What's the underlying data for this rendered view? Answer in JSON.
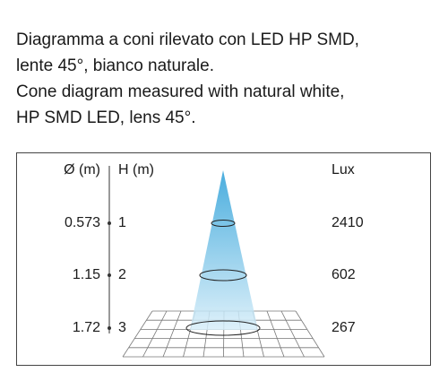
{
  "description": {
    "lines": [
      "Diagramma a coni rilevato con LED HP SMD,",
      "lente 45°, bianco naturale.",
      "Cone diagram measured with natural white,",
      "HP SMD LED, lens 45°."
    ]
  },
  "diagram": {
    "headers": {
      "diameter": "Ø (m)",
      "height": "H (m)",
      "lux": "Lux"
    },
    "rows": [
      {
        "diameter": "0.573",
        "height": "1",
        "lux": "2410"
      },
      {
        "diameter": "1.15",
        "height": "2",
        "lux": "602"
      },
      {
        "diameter": "1.72",
        "height": "3",
        "lux": "267"
      }
    ]
  }
}
